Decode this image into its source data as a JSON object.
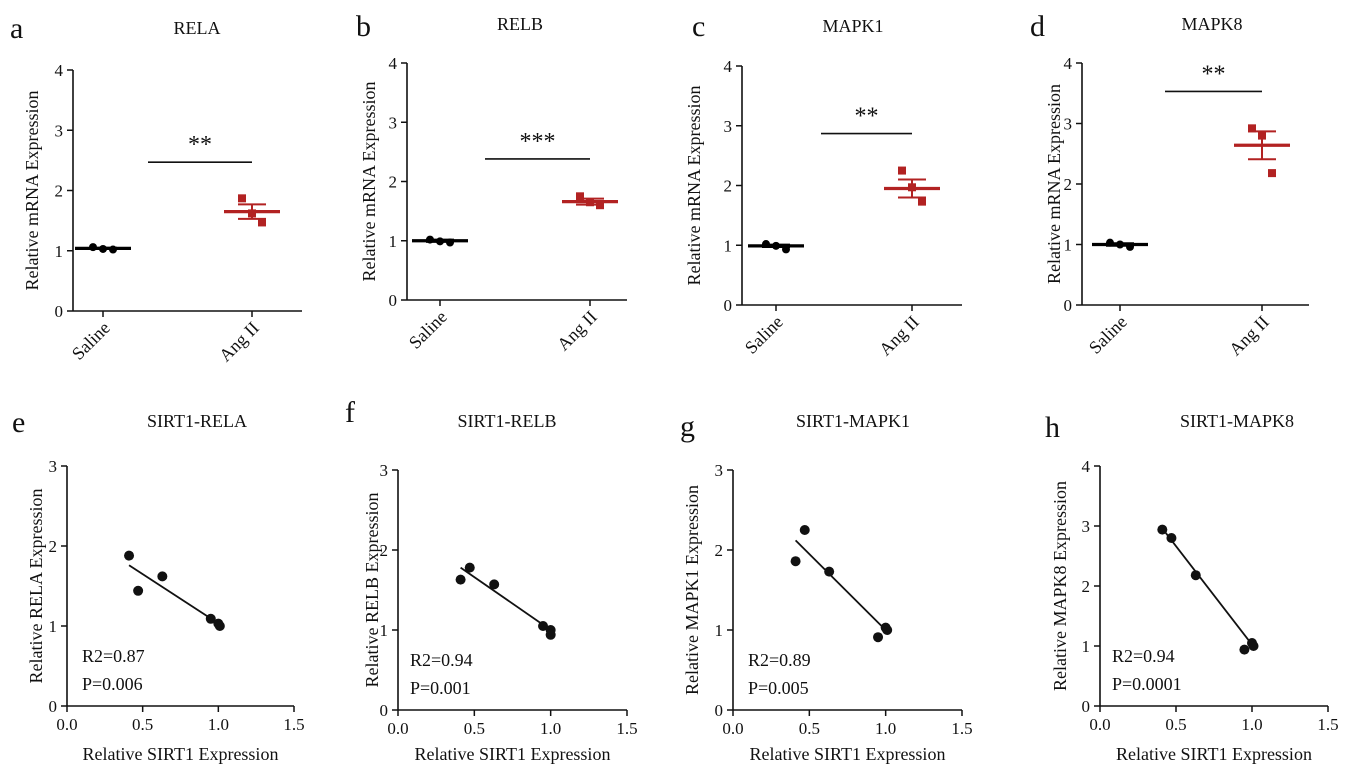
{
  "chart_data": [
    {
      "panel": "a",
      "type": "scatter",
      "title": "RELA",
      "ylabel": "Relative mRNA Expression",
      "xlabel": "",
      "categories": [
        "Saline",
        "Ang II"
      ],
      "ylim": [
        0,
        4
      ],
      "yticks": [
        "0",
        "1",
        "2",
        "3",
        "4"
      ],
      "series": [
        {
          "category": "Saline",
          "color": "#000000",
          "marker": "circle",
          "mean": 1.04,
          "sem": 0.01,
          "points": [
            1.06,
            1.03,
            1.02
          ]
        },
        {
          "category": "Ang II",
          "color": "#b22222",
          "marker": "square",
          "mean": 1.65,
          "sem": 0.12,
          "points": [
            1.87,
            1.62,
            1.47
          ]
        }
      ],
      "significance": "**",
      "sig_y": 2.47
    },
    {
      "panel": "b",
      "type": "scatter",
      "title": "RELB",
      "ylabel": "Relative mRNA Expression",
      "xlabel": "",
      "categories": [
        "Saline",
        "Ang II"
      ],
      "ylim": [
        0,
        4
      ],
      "yticks": [
        "0",
        "1",
        "2",
        "3",
        "4"
      ],
      "series": [
        {
          "category": "Saline",
          "color": "#000000",
          "marker": "circle",
          "mean": 1.0,
          "sem": 0.02,
          "points": [
            1.02,
            0.99,
            0.97
          ]
        },
        {
          "category": "Ang II",
          "color": "#b22222",
          "marker": "square",
          "mean": 1.66,
          "sem": 0.05,
          "points": [
            1.75,
            1.65,
            1.6
          ]
        }
      ],
      "significance": "***",
      "sig_y": 2.38
    },
    {
      "panel": "c",
      "type": "scatter",
      "title": "MAPK1",
      "ylabel": "Relative mRNA Expression",
      "xlabel": "",
      "categories": [
        "Saline",
        "Ang II"
      ],
      "ylim": [
        0,
        4
      ],
      "yticks": [
        "0",
        "1",
        "2",
        "3",
        "4"
      ],
      "series": [
        {
          "category": "Saline",
          "color": "#000000",
          "marker": "circle",
          "mean": 0.99,
          "sem": 0.02,
          "points": [
            1.02,
            0.99,
            0.93
          ]
        },
        {
          "category": "Ang II",
          "color": "#b22222",
          "marker": "square",
          "mean": 1.95,
          "sem": 0.15,
          "points": [
            2.25,
            1.97,
            1.73
          ]
        }
      ],
      "significance": "**",
      "sig_y": 2.87
    },
    {
      "panel": "d",
      "type": "scatter",
      "title": "MAPK8",
      "ylabel": "Relative mRNA Expression",
      "xlabel": "",
      "categories": [
        "Saline",
        "Ang II"
      ],
      "ylim": [
        0,
        4
      ],
      "yticks": [
        "0",
        "1",
        "2",
        "3",
        "4"
      ],
      "series": [
        {
          "category": "Saline",
          "color": "#000000",
          "marker": "circle",
          "mean": 1.0,
          "sem": 0.02,
          "points": [
            1.03,
            1.0,
            0.96
          ]
        },
        {
          "category": "Ang II",
          "color": "#b22222",
          "marker": "square",
          "mean": 2.64,
          "sem": 0.23,
          "points": [
            2.92,
            2.8,
            2.18
          ]
        }
      ],
      "significance": "**",
      "sig_y": 3.53
    },
    {
      "panel": "e",
      "type": "scatter",
      "title": "SIRT1-RELA",
      "ylabel": "Relative  RELA Expression",
      "xlabel": "Relative  SIRT1 Expression",
      "xlim": [
        0,
        1.5
      ],
      "ylim": [
        0,
        3
      ],
      "xticks": [
        "0.0",
        "0.5",
        "1.0",
        "1.5"
      ],
      "yticks": [
        "0",
        "1",
        "2",
        "3"
      ],
      "points": [
        [
          0.41,
          1.88
        ],
        [
          0.47,
          1.44
        ],
        [
          0.63,
          1.62
        ],
        [
          0.95,
          1.09
        ],
        [
          1.0,
          1.03
        ],
        [
          1.01,
          1.0
        ]
      ],
      "fit": [
        [
          0.41,
          1.76
        ],
        [
          1.01,
          1.02
        ]
      ],
      "stats": [
        "R2=0.87",
        "P=0.006"
      ]
    },
    {
      "panel": "f",
      "type": "scatter",
      "title": "SIRT1-RELB",
      "ylabel": "Relative  RELB Expression",
      "xlabel": "Relative  SIRT1 Expression",
      "xlim": [
        0,
        1.5
      ],
      "ylim": [
        0,
        3
      ],
      "xticks": [
        "0.0",
        "0.5",
        "1.0",
        "1.5"
      ],
      "yticks": [
        "0",
        "1",
        "2",
        "3"
      ],
      "points": [
        [
          0.41,
          1.63
        ],
        [
          0.47,
          1.78
        ],
        [
          0.63,
          1.57
        ],
        [
          0.95,
          1.05
        ],
        [
          1.0,
          1.0
        ],
        [
          1.0,
          0.94
        ]
      ],
      "fit": [
        [
          0.41,
          1.78
        ],
        [
          1.0,
          1.0
        ]
      ],
      "stats": [
        "R2=0.94",
        "P=0.001"
      ]
    },
    {
      "panel": "g",
      "type": "scatter",
      "title": "SIRT1-MAPK1",
      "ylabel": "Relative  MAPK1 Expression",
      "xlabel": "Relative  SIRT1 Expression",
      "xlim": [
        0,
        1.5
      ],
      "ylim": [
        0,
        3
      ],
      "xticks": [
        "0.0",
        "0.5",
        "1.0",
        "1.5"
      ],
      "yticks": [
        "0",
        "1",
        "2",
        "3"
      ],
      "points": [
        [
          0.41,
          1.86
        ],
        [
          0.47,
          2.25
        ],
        [
          0.63,
          1.73
        ],
        [
          0.95,
          0.91
        ],
        [
          1.0,
          1.03
        ],
        [
          1.01,
          1.0
        ]
      ],
      "fit": [
        [
          0.41,
          2.12
        ],
        [
          1.01,
          0.98
        ]
      ],
      "stats": [
        "R2=0.89",
        "P=0.005"
      ]
    },
    {
      "panel": "h",
      "type": "scatter",
      "title": "SIRT1-MAPK8",
      "ylabel": "Relative  MAPK8 Expression",
      "xlabel": "Relative  SIRT1 Expression",
      "xlim": [
        0,
        1.5
      ],
      "ylim": [
        0,
        4
      ],
      "xticks": [
        "0.0",
        "0.5",
        "1.0",
        "1.5"
      ],
      "yticks": [
        "0",
        "1",
        "2",
        "3",
        "4"
      ],
      "points": [
        [
          0.41,
          2.94
        ],
        [
          0.47,
          2.8
        ],
        [
          0.63,
          2.18
        ],
        [
          0.95,
          0.94
        ],
        [
          1.0,
          1.05
        ],
        [
          1.01,
          1.0
        ]
      ],
      "fit": [
        [
          0.41,
          2.96
        ],
        [
          1.01,
          0.99
        ]
      ],
      "stats": [
        "R2=0.94",
        "P=0.0001"
      ]
    }
  ]
}
